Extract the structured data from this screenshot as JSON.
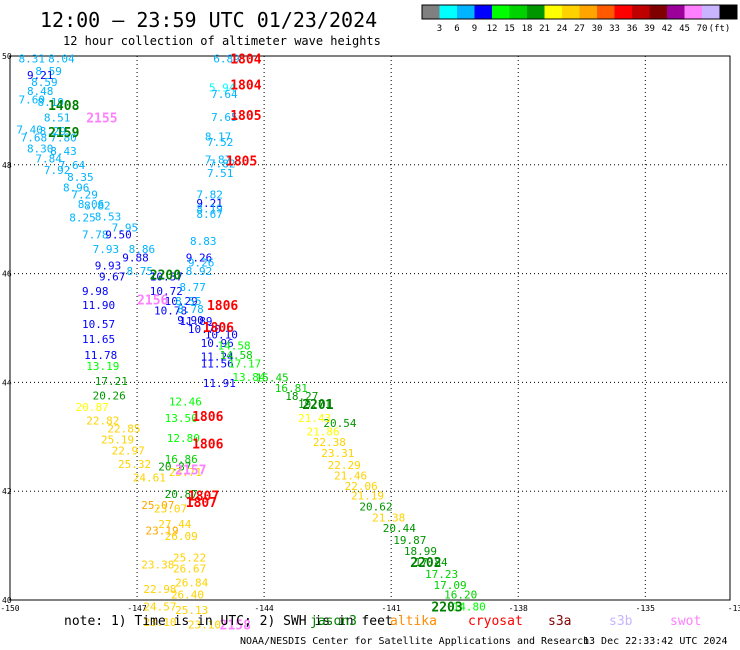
{
  "header": {
    "title": "12:00 — 23:59 UTC 01/23/2024",
    "subtitle": "12 hour collection of altimeter wave heights"
  },
  "colorbar": {
    "colors": [
      "#808080",
      "#00ffff",
      "#00b4ff",
      "#0000ff",
      "#00ff00",
      "#00d200",
      "#009600",
      "#ffff00",
      "#ffd200",
      "#ffa500",
      "#ff5a00",
      "#ff0000",
      "#be0000",
      "#800000",
      "#9b009b",
      "#ff80ff",
      "#c8b4ff",
      "#000000"
    ],
    "labels": [
      "3",
      "6",
      "9",
      "12",
      "15",
      "18",
      "21",
      "24",
      "27",
      "30",
      "33",
      "36",
      "39",
      "42",
      "45",
      "70",
      "(ft)"
    ]
  },
  "footer": {
    "note": "note: 1) Time is in UTC; 2) SWH is in feet",
    "legend": [
      {
        "label": "jason3",
        "color": "#008000"
      },
      {
        "label": "altika",
        "color": "#ff8c00"
      },
      {
        "label": "cryosat",
        "color": "#ff0000"
      },
      {
        "label": "s3a",
        "color": "#800000"
      },
      {
        "label": "s3b",
        "color": "#c8b4ff"
      },
      {
        "label": "swot",
        "color": "#ff80ff"
      }
    ],
    "credit": "NOAA/NESDIS Center for Satellite Applications and Research",
    "timestamp": "13 Dec 22:33:42 UTC 2024"
  },
  "chart_data": {
    "type": "scatter",
    "xlim": [
      -150,
      -133
    ],
    "ylim": [
      40,
      50
    ],
    "x_ticks": [
      -150,
      -147,
      -144,
      -141,
      -138,
      -135
    ],
    "x_tick_labels": [
      "-150",
      "-147",
      "-144",
      "-141",
      "-138",
      "-135"
    ],
    "y_ticks": [
      40,
      42,
      44,
      46,
      48,
      50
    ],
    "y_tick_labels": [
      "40",
      "42",
      "44",
      "46",
      "48",
      "50"
    ],
    "grid": true,
    "points": [
      {
        "lon": -149.8,
        "lat": 49.95,
        "v": "8.31",
        "c": "#00b4ff"
      },
      {
        "lon": -149.1,
        "lat": 49.95,
        "v": "8.04",
        "c": "#00b4ff"
      },
      {
        "lon": -149.4,
        "lat": 49.72,
        "v": "8.59",
        "c": "#00b4ff"
      },
      {
        "lon": -149.6,
        "lat": 49.65,
        "v": "9.21",
        "c": "#0000ff"
      },
      {
        "lon": -149.5,
        "lat": 49.52,
        "v": "8.59",
        "c": "#00b4ff"
      },
      {
        "lon": -149.6,
        "lat": 49.36,
        "v": "8.48",
        "c": "#00b4ff"
      },
      {
        "lon": -149.8,
        "lat": 49.2,
        "v": "7.60",
        "c": "#00b4ff"
      },
      {
        "lon": -149.35,
        "lat": 49.15,
        "v": "8.19",
        "c": "#00b4ff"
      },
      {
        "lon": -149.2,
        "lat": 48.87,
        "v": "8.51",
        "c": "#00b4ff"
      },
      {
        "lon": -149.85,
        "lat": 48.65,
        "v": "7.40",
        "c": "#00b4ff"
      },
      {
        "lon": -149.3,
        "lat": 48.62,
        "v": "8.29",
        "c": "#00b4ff"
      },
      {
        "lon": -149.75,
        "lat": 48.5,
        "v": "7.68",
        "c": "#00b4ff"
      },
      {
        "lon": -149.05,
        "lat": 48.5,
        "v": "7.80",
        "c": "#00b4ff"
      },
      {
        "lon": -149.6,
        "lat": 48.3,
        "v": "8.30",
        "c": "#00b4ff"
      },
      {
        "lon": -149.05,
        "lat": 48.25,
        "v": "8.43",
        "c": "#00b4ff"
      },
      {
        "lon": -149.4,
        "lat": 48.12,
        "v": "7.84",
        "c": "#00b4ff"
      },
      {
        "lon": -148.85,
        "lat": 48.0,
        "v": "7.64",
        "c": "#00b4ff"
      },
      {
        "lon": -149.2,
        "lat": 47.9,
        "v": "7.92",
        "c": "#00b4ff"
      },
      {
        "lon": -148.65,
        "lat": 47.78,
        "v": "8.35",
        "c": "#00b4ff"
      },
      {
        "lon": -148.75,
        "lat": 47.58,
        "v": "8.96",
        "c": "#00b4ff"
      },
      {
        "lon": -148.55,
        "lat": 47.45,
        "v": "7.29",
        "c": "#00b4ff"
      },
      {
        "lon": -148.25,
        "lat": 47.25,
        "v": "8.82",
        "c": "#00b4ff"
      },
      {
        "lon": -148.4,
        "lat": 47.28,
        "v": "8.06",
        "c": "#00b4ff"
      },
      {
        "lon": -148.6,
        "lat": 47.03,
        "v": "8.25",
        "c": "#00b4ff"
      },
      {
        "lon": -148.0,
        "lat": 47.05,
        "v": "8.53",
        "c": "#00b4ff"
      },
      {
        "lon": -147.6,
        "lat": 46.85,
        "v": "7.95",
        "c": "#00b4ff"
      },
      {
        "lon": -148.3,
        "lat": 46.72,
        "v": "7.78",
        "c": "#00b4ff"
      },
      {
        "lon": -147.75,
        "lat": 46.72,
        "v": "9.50",
        "c": "#0000ff"
      },
      {
        "lon": -148.05,
        "lat": 46.45,
        "v": "7.93",
        "c": "#00b4ff"
      },
      {
        "lon": -147.2,
        "lat": 46.45,
        "v": "8.86",
        "c": "#00b4ff"
      },
      {
        "lon": -147.35,
        "lat": 46.3,
        "v": "9.88",
        "c": "#0000ff"
      },
      {
        "lon": -148.0,
        "lat": 46.15,
        "v": "9.93",
        "c": "#0000ff"
      },
      {
        "lon": -147.25,
        "lat": 46.05,
        "v": "8.75",
        "c": "#00b4ff"
      },
      {
        "lon": -147.9,
        "lat": 45.95,
        "v": "9.67",
        "c": "#0000ff"
      },
      {
        "lon": -146.7,
        "lat": 45.95,
        "v": "10.37",
        "c": "#0000ff"
      },
      {
        "lon": -148.3,
        "lat": 45.68,
        "v": "9.98",
        "c": "#0000ff"
      },
      {
        "lon": -146.7,
        "lat": 45.68,
        "v": "10.72",
        "c": "#0000ff"
      },
      {
        "lon": -146.35,
        "lat": 45.5,
        "v": "10.29",
        "c": "#0000ff"
      },
      {
        "lon": -148.3,
        "lat": 45.42,
        "v": "11.90",
        "c": "#0000ff"
      },
      {
        "lon": -146.6,
        "lat": 45.32,
        "v": "10.78",
        "c": "#0000ff"
      },
      {
        "lon": -146.0,
        "lat": 45.13,
        "v": "11.89",
        "c": "#0000ff"
      },
      {
        "lon": -148.3,
        "lat": 45.07,
        "v": "10.57",
        "c": "#0000ff"
      },
      {
        "lon": -145.8,
        "lat": 44.98,
        "v": "10.70",
        "c": "#0000ff"
      },
      {
        "lon": -148.3,
        "lat": 44.8,
        "v": "11.65",
        "c": "#0000ff"
      },
      {
        "lon": -145.4,
        "lat": 44.88,
        "v": "10.10",
        "c": "#0000ff"
      },
      {
        "lon": -148.25,
        "lat": 44.5,
        "v": "11.78",
        "c": "#0000ff"
      },
      {
        "lon": -145.5,
        "lat": 44.72,
        "v": "10.96",
        "c": "#0000ff"
      },
      {
        "lon": -145.5,
        "lat": 44.48,
        "v": "11.24",
        "c": "#0000ff"
      },
      {
        "lon": -145.05,
        "lat": 44.5,
        "v": "14.58",
        "c": "#00d200"
      },
      {
        "lon": -145.5,
        "lat": 44.35,
        "v": "11.56",
        "c": "#0000ff"
      },
      {
        "lon": -145.45,
        "lat": 43.99,
        "v": "11.91",
        "c": "#0000ff"
      },
      {
        "lon": -145.1,
        "lat": 44.68,
        "v": "14.58",
        "c": "#00ff00"
      },
      {
        "lon": -144.85,
        "lat": 44.35,
        "v": "17.17",
        "c": "#00ff00"
      },
      {
        "lon": -144.75,
        "lat": 44.1,
        "v": "13.84",
        "c": "#00ff00"
      },
      {
        "lon": -144.2,
        "lat": 44.09,
        "v": "15.45",
        "c": "#00d200"
      },
      {
        "lon": -143.75,
        "lat": 43.9,
        "v": "16.81",
        "c": "#00d200"
      },
      {
        "lon": -143.5,
        "lat": 43.75,
        "v": "18.27",
        "c": "#009600"
      },
      {
        "lon": -143.2,
        "lat": 43.6,
        "v": "19.71",
        "c": "#009600"
      },
      {
        "lon": -142.6,
        "lat": 43.25,
        "v": "20.54",
        "c": "#009600"
      },
      {
        "lon": -148.2,
        "lat": 44.3,
        "v": "13.19",
        "c": "#00ff00"
      },
      {
        "lon": -148.0,
        "lat": 44.03,
        "v": "17.21",
        "c": "#009600"
      },
      {
        "lon": -148.05,
        "lat": 43.76,
        "v": "20.26",
        "c": "#009600"
      },
      {
        "lon": -148.45,
        "lat": 43.55,
        "v": "20.87",
        "c": "#ffff00"
      },
      {
        "lon": -148.2,
        "lat": 43.3,
        "v": "22.82",
        "c": "#ffd200"
      },
      {
        "lon": -147.7,
        "lat": 43.15,
        "v": "22.85",
        "c": "#ffd200"
      },
      {
        "lon": -147.85,
        "lat": 42.95,
        "v": "25.19",
        "c": "#ffd200"
      },
      {
        "lon": -147.6,
        "lat": 42.75,
        "v": "22.97",
        "c": "#ffd200"
      },
      {
        "lon": -147.45,
        "lat": 42.5,
        "v": "25.32",
        "c": "#ffd200"
      },
      {
        "lon": -147.1,
        "lat": 42.25,
        "v": "24.61",
        "c": "#ffd200"
      },
      {
        "lon": -146.25,
        "lat": 43.65,
        "v": "12.46",
        "c": "#00ff00"
      },
      {
        "lon": -146.35,
        "lat": 43.35,
        "v": "13.50",
        "c": "#00ff00"
      },
      {
        "lon": -146.3,
        "lat": 42.98,
        "v": "12.80",
        "c": "#00ff00"
      },
      {
        "lon": -146.35,
        "lat": 42.59,
        "v": "16.86",
        "c": "#00d200"
      },
      {
        "lon": -146.5,
        "lat": 42.45,
        "v": "20.87",
        "c": "#009600"
      },
      {
        "lon": -146.25,
        "lat": 42.35,
        "v": "23.71",
        "c": "#ffd200"
      },
      {
        "lon": -146.35,
        "lat": 41.95,
        "v": "20.87",
        "c": "#009600"
      },
      {
        "lon": -146.9,
        "lat": 41.75,
        "v": "25.07",
        "c": "#ffa500"
      },
      {
        "lon": -146.6,
        "lat": 41.68,
        "v": "23.07",
        "c": "#ffd200"
      },
      {
        "lon": -146.5,
        "lat": 41.4,
        "v": "27.44",
        "c": "#ffd200"
      },
      {
        "lon": -146.8,
        "lat": 41.28,
        "v": "23.19",
        "c": "#ffa500"
      },
      {
        "lon": -146.35,
        "lat": 41.18,
        "v": "26.09",
        "c": "#ffd200"
      },
      {
        "lon": -146.15,
        "lat": 40.78,
        "v": "25.22",
        "c": "#ffd200"
      },
      {
        "lon": -146.9,
        "lat": 40.65,
        "v": "23.38",
        "c": "#ffd200"
      },
      {
        "lon": -146.15,
        "lat": 40.58,
        "v": "26.67",
        "c": "#ffd200"
      },
      {
        "lon": -146.1,
        "lat": 40.32,
        "v": "26.84",
        "c": "#ffd200"
      },
      {
        "lon": -146.85,
        "lat": 40.2,
        "v": "22.98",
        "c": "#ffd200"
      },
      {
        "lon": -146.2,
        "lat": 40.1,
        "v": "26.40",
        "c": "#ffd200"
      },
      {
        "lon": -146.85,
        "lat": 39.88,
        "v": "24.57",
        "c": "#ffd200"
      },
      {
        "lon": -146.1,
        "lat": 39.82,
        "v": "25.13",
        "c": "#ffd200"
      },
      {
        "lon": -146.85,
        "lat": 39.6,
        "v": "23.10",
        "c": "#ffd200"
      },
      {
        "lon": -145.8,
        "lat": 39.55,
        "v": "23.10",
        "c": "#ffd200"
      },
      {
        "lon": -143.2,
        "lat": 43.35,
        "v": "21.43",
        "c": "#ffff00"
      },
      {
        "lon": -143.0,
        "lat": 43.1,
        "v": "21.86",
        "c": "#ffff00"
      },
      {
        "lon": -142.85,
        "lat": 42.9,
        "v": "22.38",
        "c": "#ffd200"
      },
      {
        "lon": -142.65,
        "lat": 42.7,
        "v": "23.31",
        "c": "#ffd200"
      },
      {
        "lon": -142.5,
        "lat": 42.48,
        "v": "22.29",
        "c": "#ffd200"
      },
      {
        "lon": -142.35,
        "lat": 42.29,
        "v": "21.46",
        "c": "#ffd200"
      },
      {
        "lon": -142.1,
        "lat": 42.1,
        "v": "22.06",
        "c": "#ffd200"
      },
      {
        "lon": -141.95,
        "lat": 41.92,
        "v": "21.19",
        "c": "#ffd200"
      },
      {
        "lon": -141.75,
        "lat": 41.72,
        "v": "20.62",
        "c": "#009600"
      },
      {
        "lon": -141.45,
        "lat": 41.52,
        "v": "21.38",
        "c": "#ffd200"
      },
      {
        "lon": -141.2,
        "lat": 41.32,
        "v": "20.44",
        "c": "#009600"
      },
      {
        "lon": -140.95,
        "lat": 41.1,
        "v": "19.87",
        "c": "#009600"
      },
      {
        "lon": -140.7,
        "lat": 40.9,
        "v": "18.99",
        "c": "#009600"
      },
      {
        "lon": -140.45,
        "lat": 40.7,
        "v": "17.84",
        "c": "#009600"
      },
      {
        "lon": -140.2,
        "lat": 40.48,
        "v": "17.23",
        "c": "#00d200"
      },
      {
        "lon": -140.0,
        "lat": 40.28,
        "v": "17.09",
        "c": "#00d200"
      },
      {
        "lon": -139.75,
        "lat": 40.1,
        "v": "16.20",
        "c": "#00d200"
      },
      {
        "lon": -139.55,
        "lat": 39.88,
        "v": "14.80",
        "c": "#00ff00"
      },
      {
        "lon": -145.2,
        "lat": 49.95,
        "v": "6.89",
        "c": "#00b4ff"
      },
      {
        "lon": -145.3,
        "lat": 49.42,
        "v": "5.94",
        "c": "#00ffff"
      },
      {
        "lon": -145.25,
        "lat": 49.3,
        "v": "7.64",
        "c": "#00b4ff"
      },
      {
        "lon": -145.25,
        "lat": 48.88,
        "v": "7.65",
        "c": "#00b4ff"
      },
      {
        "lon": -145.4,
        "lat": 48.52,
        "v": "8.17",
        "c": "#00b4ff"
      },
      {
        "lon": -145.35,
        "lat": 48.42,
        "v": "7.52",
        "c": "#00b4ff"
      },
      {
        "lon": -145.4,
        "lat": 48.1,
        "v": "7.87",
        "c": "#00b4ff"
      },
      {
        "lon": -145.3,
        "lat": 48.02,
        "v": "7.82",
        "c": "#00b4ff"
      },
      {
        "lon": -145.35,
        "lat": 47.85,
        "v": "7.51",
        "c": "#00b4ff"
      },
      {
        "lon": -145.6,
        "lat": 47.45,
        "v": "7.82",
        "c": "#00b4ff"
      },
      {
        "lon": -145.6,
        "lat": 47.3,
        "v": "9.21",
        "c": "#0000ff"
      },
      {
        "lon": -145.6,
        "lat": 47.2,
        "v": "8.19",
        "c": "#00b4ff"
      },
      {
        "lon": -145.6,
        "lat": 47.1,
        "v": "8.67",
        "c": "#00b4ff"
      },
      {
        "lon": -145.75,
        "lat": 46.6,
        "v": "8.83",
        "c": "#00b4ff"
      },
      {
        "lon": -145.85,
        "lat": 46.3,
        "v": "9.26",
        "c": "#0000ff"
      },
      {
        "lon": -145.8,
        "lat": 46.2,
        "v": "9.26",
        "c": "#00b4ff"
      },
      {
        "lon": -145.85,
        "lat": 46.05,
        "v": "8.92",
        "c": "#00b4ff"
      },
      {
        "lon": -146.0,
        "lat": 45.75,
        "v": "8.77",
        "c": "#00b4ff"
      },
      {
        "lon": -146.1,
        "lat": 45.5,
        "v": "8.55",
        "c": "#00b4ff"
      },
      {
        "lon": -146.05,
        "lat": 45.35,
        "v": "8.78",
        "c": "#00b4ff"
      },
      {
        "lon": -146.05,
        "lat": 45.15,
        "v": "9.90",
        "c": "#0000ff"
      }
    ],
    "passes": [
      {
        "lon": -144.8,
        "lat": 49.95,
        "t": "1804",
        "c": "#ff0000",
        "size": 13
      },
      {
        "lon": -144.8,
        "lat": 49.48,
        "t": "1804",
        "c": "#ff0000",
        "size": 13
      },
      {
        "lon": -144.8,
        "lat": 48.92,
        "t": "1805",
        "c": "#ff0000",
        "size": 13
      },
      {
        "lon": -144.9,
        "lat": 48.08,
        "t": "1805",
        "c": "#ff0000",
        "size": 13
      },
      {
        "lon": -145.35,
        "lat": 45.42,
        "t": "1806",
        "c": "#ff0000",
        "size": 13
      },
      {
        "lon": -145.45,
        "lat": 45.02,
        "t": "1806",
        "c": "#ff0000",
        "size": 13
      },
      {
        "lon": -145.7,
        "lat": 43.38,
        "t": "1806",
        "c": "#ff0000",
        "size": 13
      },
      {
        "lon": -145.7,
        "lat": 42.88,
        "t": "1806",
        "c": "#ff0000",
        "size": 13
      },
      {
        "lon": -145.8,
        "lat": 41.92,
        "t": "1807",
        "c": "#ff0000",
        "size": 13
      },
      {
        "lon": -145.85,
        "lat": 41.8,
        "t": "1807",
        "c": "#ff0000",
        "size": 13
      },
      {
        "lon": -149.1,
        "lat": 49.1,
        "t": "1408",
        "c": "#008000",
        "size": 13
      },
      {
        "lon": -149.1,
        "lat": 48.6,
        "t": "2159",
        "c": "#008000",
        "size": 13
      },
      {
        "lon": -146.7,
        "lat": 45.98,
        "t": "2200",
        "c": "#008000",
        "size": 13
      },
      {
        "lon": -143.1,
        "lat": 43.6,
        "t": "2201",
        "c": "#008000",
        "size": 13
      },
      {
        "lon": -140.55,
        "lat": 40.7,
        "t": "2202",
        "c": "#008000",
        "size": 13
      },
      {
        "lon": -140.05,
        "lat": 39.88,
        "t": "2203",
        "c": "#008000",
        "size": 13
      },
      {
        "lon": -148.2,
        "lat": 48.87,
        "t": "2155",
        "c": "#ff80ff",
        "size": 13
      },
      {
        "lon": -147.0,
        "lat": 45.52,
        "t": "2156",
        "c": "#ff80ff",
        "size": 13
      },
      {
        "lon": -146.1,
        "lat": 42.4,
        "t": "2157",
        "c": "#ff80ff",
        "size": 13
      },
      {
        "lon": -145.05,
        "lat": 39.55,
        "t": "2158",
        "c": "#ff80ff",
        "size": 13
      }
    ]
  }
}
